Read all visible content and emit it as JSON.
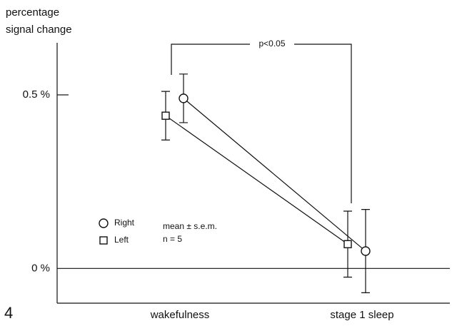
{
  "chart_data": {
    "type": "line",
    "figure_number": "4",
    "ylabel": [
      "percentage",
      "signal change"
    ],
    "categories": [
      "wakefulness",
      "stage 1 sleep"
    ],
    "series": [
      {
        "name": "Right",
        "marker": "circle",
        "color": "#111111",
        "values": [
          0.49,
          0.05
        ],
        "errors": [
          0.07,
          0.12
        ]
      },
      {
        "name": "Left",
        "marker": "square",
        "color": "#111111",
        "values": [
          0.44,
          0.07
        ],
        "errors": [
          0.07,
          0.095
        ]
      }
    ],
    "ylim": [
      -0.1,
      0.65
    ],
    "yticks": [
      {
        "value": 0,
        "label": "0 %"
      },
      {
        "value": 0.5,
        "label": "0.5 %"
      }
    ],
    "annotations": {
      "significance": "p<0.05",
      "stat": "mean ± s.e.m.",
      "n": "n = 5"
    }
  }
}
